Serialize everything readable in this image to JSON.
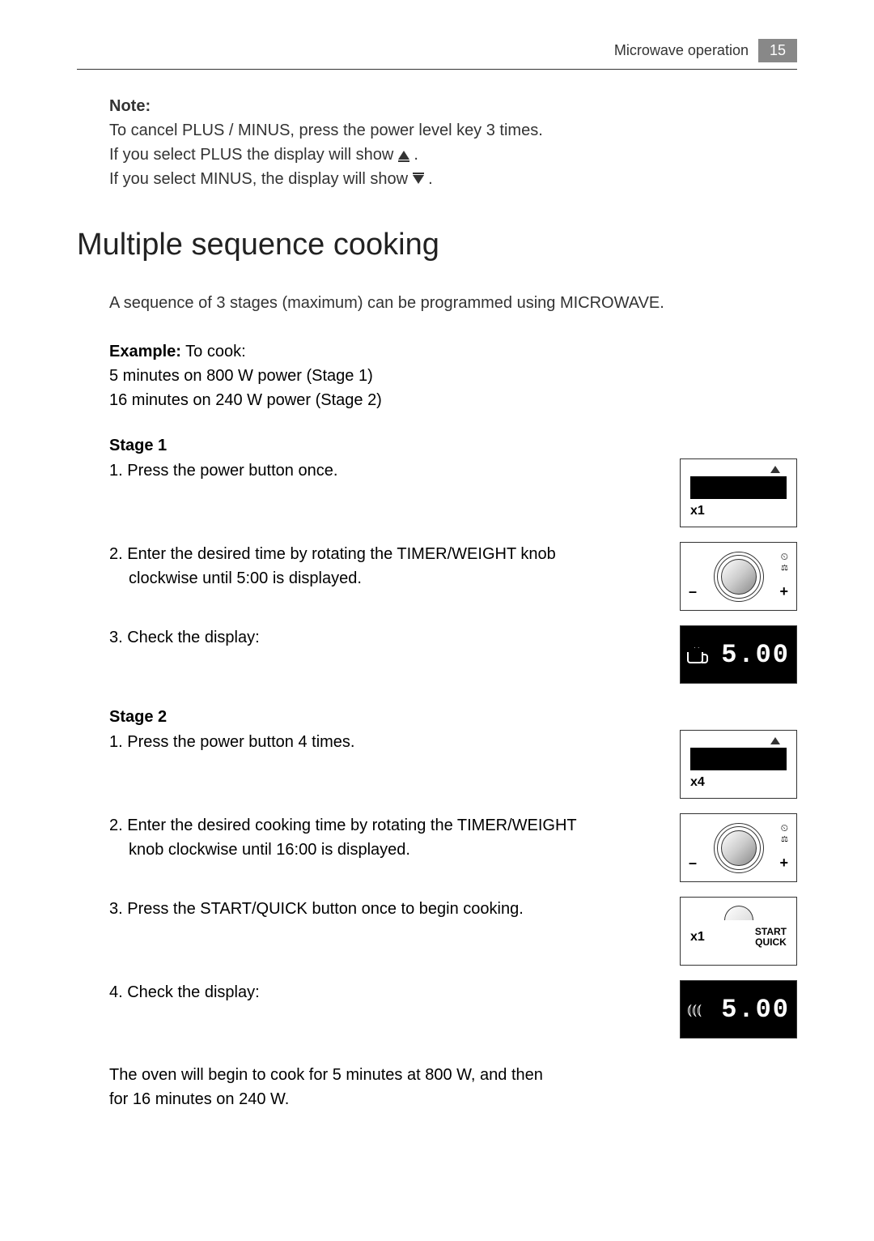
{
  "header": {
    "section": "Microwave operation",
    "page": "15"
  },
  "note": {
    "title": "Note:",
    "line1": "To cancel PLUS / MINUS, press the power level key 3 times.",
    "line2a": "If you select PLUS the display will show ",
    "line2b": " .",
    "line3a": "If you select MINUS, the display will show ",
    "line3b": "."
  },
  "main_title": "Multiple sequence cooking",
  "intro": "A sequence of 3 stages (maximum) can be programmed using MICROWAVE.",
  "example": {
    "label": "Example:",
    "text": " To cook:",
    "line1": "5 minutes on 800 W power   (Stage 1)",
    "line2": "16 minutes on 240 W power (Stage 2)"
  },
  "stage1": {
    "title": "Stage 1",
    "step1": "1. Press the power button once.",
    "step2": "2. Enter the desired time by rotating the TIMER/WEIGHT knob",
    "step2b": "clockwise until 5:00 is displayed.",
    "step3": "3. Check the display:",
    "press_count": "x1",
    "display_time": "5.00"
  },
  "stage2": {
    "title": "Stage 2",
    "step1": "1. Press the power button 4 times.",
    "step2": "2. Enter the desired cooking time by rotating the TIMER/WEIGHT",
    "step2b": "knob clockwise until 16:00 is displayed.",
    "step3": "3. Press the START/QUICK button once to begin cooking.",
    "step4": "4. Check the display:",
    "press_count": "x4",
    "start_count": "x1",
    "start_label1": "START",
    "start_label2": "QUICK",
    "display_time": "5.00"
  },
  "conclusion": {
    "line1": "The oven will begin to cook for 5 minutes at 800 W, and then",
    "line2": "for 16 minutes on 240 W."
  },
  "knob": {
    "minus": "–",
    "plus": "+"
  }
}
